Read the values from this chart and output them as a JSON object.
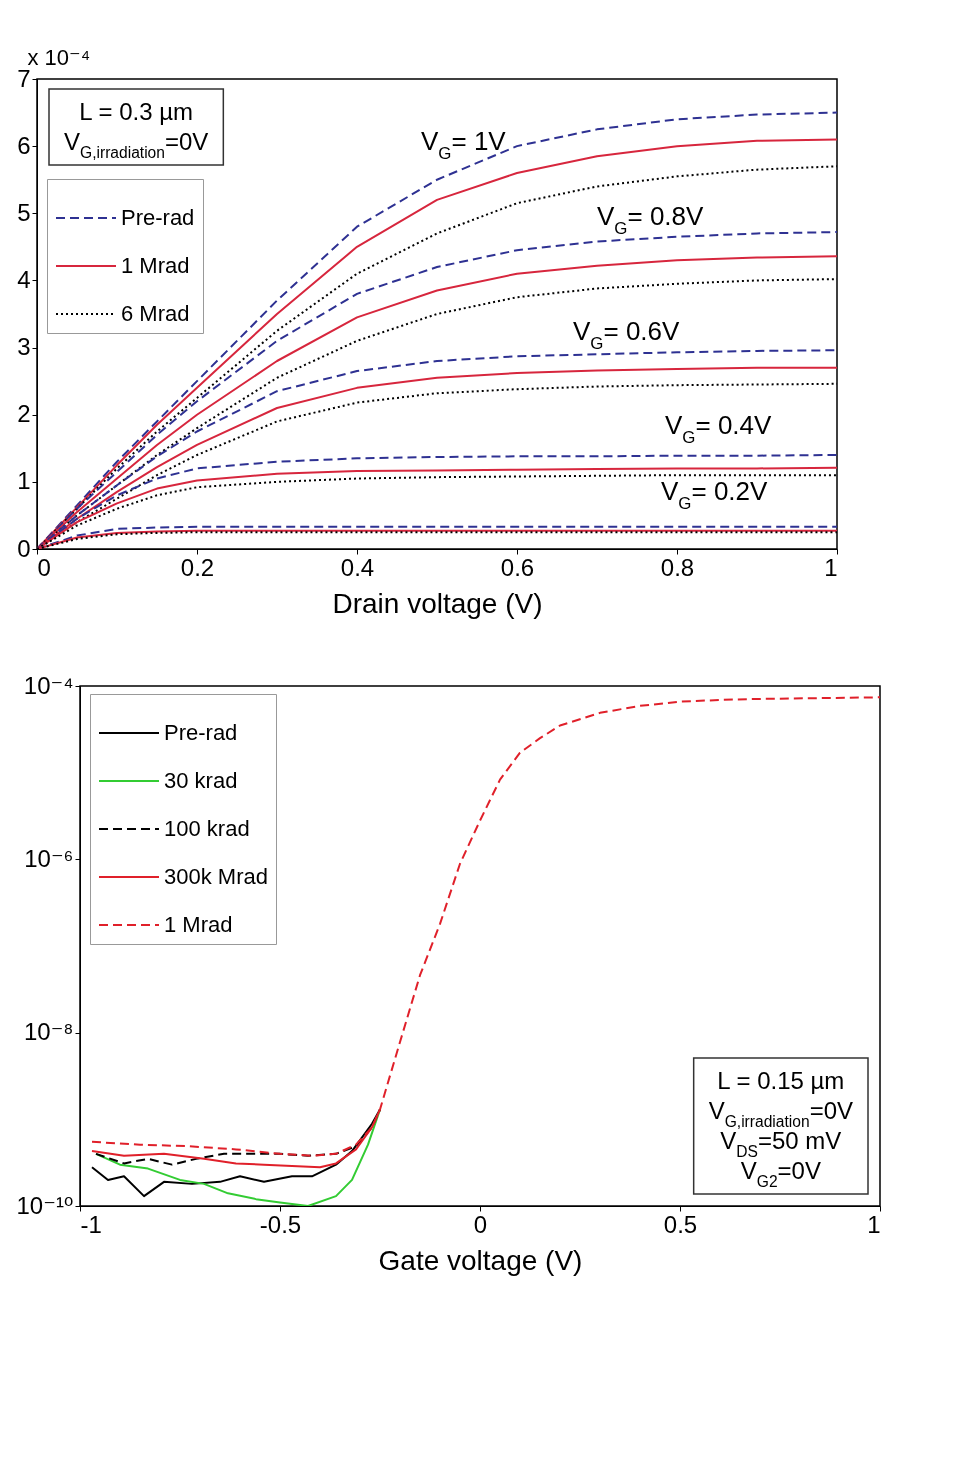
{
  "chart_data": [
    {
      "type": "line",
      "xlabel": "Drain voltage (V)",
      "ylabel": "x 10⁻⁴",
      "x": [
        0,
        0.05,
        0.1,
        0.15,
        0.2,
        0.3,
        0.4,
        0.5,
        0.6,
        0.7,
        0.8,
        0.9,
        1
      ],
      "xlim": [
        0,
        1
      ],
      "xticks": [
        0,
        0.2,
        0.4,
        0.6,
        0.8,
        1
      ],
      "ylim": [
        0,
        7
      ],
      "yticks": [
        0,
        1,
        2,
        3,
        4,
        5,
        6,
        7
      ],
      "legend": "top left",
      "series": [
        {
          "name": "Pre-rad",
          "color": "#2e3192",
          "line_style": "dashed",
          "values": [
            0,
            0.65,
            1.3,
            1.9,
            2.5,
            3.7,
            4.8,
            5.5,
            6.0,
            6.25,
            6.4,
            6.47,
            6.5
          ]
        },
        {
          "name": "1 Mrad",
          "color": "#d7263d",
          "line_style": "solid",
          "values": [
            0,
            0.62,
            1.25,
            1.85,
            2.4,
            3.5,
            4.5,
            5.2,
            5.6,
            5.85,
            6.0,
            6.08,
            6.1
          ]
        },
        {
          "name": "6 Mrad",
          "color": "#000000",
          "line_style": "dotted",
          "values": [
            0,
            0.6,
            1.2,
            1.75,
            2.25,
            3.25,
            4.1,
            4.7,
            5.15,
            5.4,
            5.55,
            5.65,
            5.7
          ]
        },
        {
          "color": "#2e3192",
          "line_style": "dashed",
          "values": [
            0,
            0.6,
            1.15,
            1.7,
            2.2,
            3.1,
            3.8,
            4.2,
            4.45,
            4.58,
            4.65,
            4.7,
            4.72
          ]
        },
        {
          "color": "#d7263d",
          "line_style": "solid",
          "values": [
            0,
            0.55,
            1.05,
            1.55,
            2.0,
            2.8,
            3.45,
            3.85,
            4.1,
            4.22,
            4.3,
            4.34,
            4.36
          ]
        },
        {
          "color": "#000000",
          "line_style": "dotted",
          "values": [
            0,
            0.5,
            0.95,
            1.4,
            1.8,
            2.55,
            3.1,
            3.5,
            3.75,
            3.88,
            3.95,
            4.0,
            4.02
          ]
        },
        {
          "color": "#2e3192",
          "line_style": "dashed",
          "values": [
            0,
            0.5,
            0.95,
            1.38,
            1.75,
            2.35,
            2.65,
            2.8,
            2.87,
            2.9,
            2.93,
            2.95,
            2.96
          ]
        },
        {
          "color": "#d7263d",
          "line_style": "solid",
          "values": [
            0,
            0.45,
            0.85,
            1.22,
            1.55,
            2.1,
            2.4,
            2.55,
            2.62,
            2.66,
            2.68,
            2.7,
            2.7
          ]
        },
        {
          "color": "#000000",
          "line_style": "dotted",
          "values": [
            0,
            0.4,
            0.75,
            1.1,
            1.4,
            1.9,
            2.18,
            2.32,
            2.38,
            2.42,
            2.44,
            2.45,
            2.46
          ]
        },
        {
          "color": "#2e3192",
          "line_style": "dashed",
          "values": [
            0,
            0.45,
            0.8,
            1.05,
            1.2,
            1.3,
            1.35,
            1.37,
            1.38,
            1.38,
            1.39,
            1.39,
            1.4
          ]
        },
        {
          "color": "#d7263d",
          "line_style": "solid",
          "values": [
            0,
            0.4,
            0.68,
            0.9,
            1.02,
            1.12,
            1.16,
            1.17,
            1.18,
            1.19,
            1.2,
            1.2,
            1.21
          ]
        },
        {
          "color": "#000000",
          "line_style": "dotted",
          "values": [
            0,
            0.35,
            0.6,
            0.8,
            0.92,
            1.0,
            1.05,
            1.07,
            1.08,
            1.09,
            1.1,
            1.1,
            1.1
          ]
        },
        {
          "color": "#2e3192",
          "line_style": "dashed",
          "values": [
            0,
            0.2,
            0.3,
            0.32,
            0.33,
            0.33,
            0.33,
            0.33,
            0.33,
            0.33,
            0.33,
            0.33,
            0.33
          ]
        },
        {
          "color": "#d7263d",
          "line_style": "solid",
          "values": [
            0,
            0.17,
            0.24,
            0.26,
            0.27,
            0.27,
            0.27,
            0.27,
            0.27,
            0.27,
            0.27,
            0.27,
            0.27
          ]
        },
        {
          "color": "#000000",
          "line_style": "dotted",
          "values": [
            0,
            0.15,
            0.22,
            0.24,
            0.25,
            0.25,
            0.25,
            0.25,
            0.25,
            0.25,
            0.25,
            0.25,
            0.25
          ]
        }
      ],
      "annotations": [
        "L = 0.3 µm",
        "V$_{G,irradiation}$=0V",
        "V$_{G}$= 1V",
        "V$_{G}$= 0.8V",
        "V$_{G}$= 0.6V",
        "V$_{G}$= 0.4V",
        "V$_{G}$= 0.2V"
      ]
    },
    {
      "type": "line",
      "xlabel": "Gate voltage (V)",
      "log": true,
      "xlim": [
        -1,
        1
      ],
      "xticks": [
        -1,
        -0.5,
        0,
        0.5,
        1
      ],
      "ylim": [
        1e-10,
        0.0001
      ],
      "yticks": [
        {
          "value": 1e-10,
          "label": "10⁻¹⁰"
        },
        {
          "value": 1e-08,
          "label": "10⁻⁸"
        },
        {
          "value": 1e-06,
          "label": "10⁻⁶"
        },
        {
          "value": 0.0001,
          "label": "10⁻⁴"
        }
      ],
      "legend": "top left",
      "series": [
        {
          "name": "Pre-rad",
          "color": "#000000",
          "line_style": "solid",
          "x": [
            -0.97,
            -0.93,
            -0.89,
            -0.84,
            -0.79,
            -0.72,
            -0.65,
            -0.6,
            -0.54,
            -0.47,
            -0.42,
            -0.36,
            -0.32,
            -0.27,
            -0.25
          ],
          "values": [
            2.8e-10,
            2e-10,
            2.2e-10,
            1.3e-10,
            1.9e-10,
            1.8e-10,
            1.9e-10,
            2.2e-10,
            1.9e-10,
            2.2e-10,
            2.2e-10,
            3e-10,
            4.3e-10,
            8.9e-10,
            1.3e-09
          ]
        },
        {
          "name": "30 krad",
          "color": "#33cc33",
          "line_style": "solid",
          "x": [
            -0.96,
            -0.9,
            -0.83,
            -0.75,
            -0.69,
            -0.63,
            -0.56,
            -0.5,
            -0.43,
            -0.36,
            -0.32,
            -0.28,
            -0.25
          ],
          "values": [
            4e-10,
            3e-10,
            2.7e-10,
            2e-10,
            1.8e-10,
            1.4e-10,
            1.2e-10,
            1.1e-10,
            1e-10,
            1.3e-10,
            2e-10,
            5.1e-10,
            1.3e-09
          ]
        },
        {
          "name": "100 krad",
          "color": "#000000",
          "line_style": "dashed",
          "x": [
            -0.96,
            -0.89,
            -0.83,
            -0.77,
            -0.71,
            -0.64,
            -0.56,
            -0.5,
            -0.43,
            -0.36,
            -0.31,
            -0.27,
            -0.25
          ],
          "values": [
            4e-10,
            3.1e-10,
            3.5e-10,
            3e-10,
            3.5e-10,
            4e-10,
            4e-10,
            4e-10,
            3.8e-10,
            4e-10,
            4.9e-10,
            8.1e-10,
            1.3e-09
          ]
        },
        {
          "name": "300k Mrad",
          "color": "#e0202a",
          "line_style": "solid",
          "x": [
            -0.97,
            -0.89,
            -0.79,
            -0.69,
            -0.61,
            -0.54,
            -0.47,
            -0.4,
            -0.36,
            -0.31,
            -0.27,
            -0.25
          ],
          "values": [
            4.3e-10,
            3.8e-10,
            4e-10,
            3.5e-10,
            3.1e-10,
            3e-10,
            2.9e-10,
            2.8e-10,
            3.1e-10,
            4.5e-10,
            8.1e-10,
            1.3e-09
          ]
        },
        {
          "name": "1 Mrad",
          "color": "#e0202a",
          "line_style": "dashed",
          "x": [
            -0.97,
            -0.85,
            -0.73,
            -0.61,
            -0.5,
            -0.42,
            -0.36,
            -0.31,
            -0.27,
            -0.25,
            -0.2,
            -0.15,
            -0.1,
            -0.05,
            0,
            0.05,
            0.1,
            0.15,
            0.2,
            0.3,
            0.4,
            0.5,
            0.6,
            0.7,
            1
          ],
          "values": [
            5.5e-10,
            5.1e-10,
            4.9e-10,
            4.5e-10,
            4e-10,
            3.8e-10,
            4e-10,
            5.1e-10,
            8.1e-10,
            1.3e-09,
            7.8e-09,
            4.6e-08,
            1.8e-07,
            8.9e-07,
            2.8e-06,
            8.3e-06,
            1.7e-05,
            2.5e-05,
            3.5e-05,
            4.9e-05,
            5.9e-05,
            6.6e-05,
            6.9e-05,
            7.1e-05,
            7.4e-05
          ]
        }
      ],
      "annotations": [
        "L = 0.15 µm",
        "V$_{G,irradiation}$=0V",
        "V$_{DS}$=50 mV",
        "V$_{G2}$=0V"
      ]
    }
  ]
}
